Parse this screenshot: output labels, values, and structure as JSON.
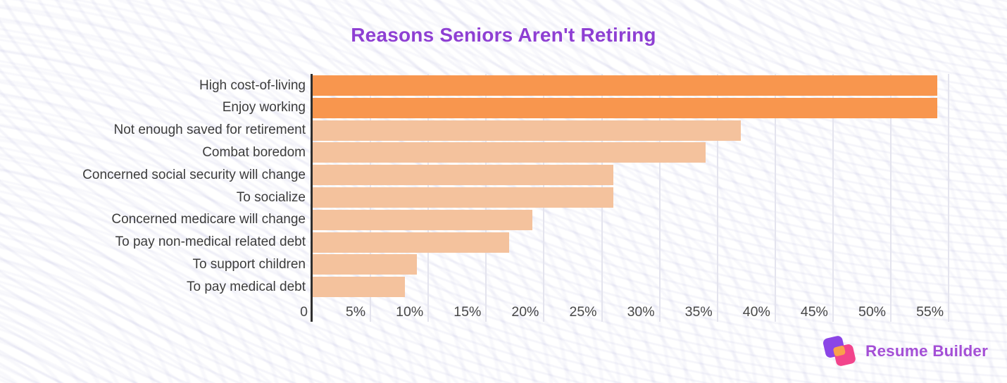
{
  "header": {
    "title": "Reasons Seniors Aren't Retiring",
    "title_color": "#8E3FD3"
  },
  "chart_data": {
    "type": "bar",
    "orientation": "horizontal",
    "title": "Reasons Seniors Aren't Retiring",
    "categories": [
      "High cost-of-living",
      "Enjoy working",
      "Not enough saved for retirement",
      "Combat boredom",
      "Concerned social security will change",
      "To socialize",
      "Concerned medicare will change",
      "To pay non-medical related debt",
      "To support children",
      "To pay medical debt"
    ],
    "values": [
      54,
      54,
      37,
      34,
      26,
      26,
      19,
      17,
      9,
      8
    ],
    "unit": "%",
    "xlim": [
      0,
      59
    ],
    "x_ticks": [
      {
        "v": 0,
        "label": "0"
      },
      {
        "v": 5,
        "label": "5%"
      },
      {
        "v": 10,
        "label": "10%"
      },
      {
        "v": 15,
        "label": "15%"
      },
      {
        "v": 20,
        "label": "20%"
      },
      {
        "v": 25,
        "label": "25%"
      },
      {
        "v": 30,
        "label": "30%"
      },
      {
        "v": 35,
        "label": "35%"
      },
      {
        "v": 40,
        "label": "40%"
      },
      {
        "v": 45,
        "label": "45%"
      },
      {
        "v": 50,
        "label": "50%"
      },
      {
        "v": 55,
        "label": "55%"
      }
    ],
    "grid": true,
    "legend": "none",
    "highlight_count": 2,
    "colors": {
      "highlight_bar": "#F8964E",
      "bar": "#F4C29D",
      "axis_line": "#2F2F2F",
      "gridline": "#E4E4EE",
      "category_label": "#3C3C3C",
      "tick_label": "#474747"
    }
  },
  "branding": {
    "logo_text": "Resume Builder",
    "logo_text_color": "#A44FD6",
    "logo_icon": {
      "name": "resume-builder-logo",
      "purple": "#8B45E6",
      "pink": "#F2448C",
      "orange": "#F9A14B"
    }
  }
}
